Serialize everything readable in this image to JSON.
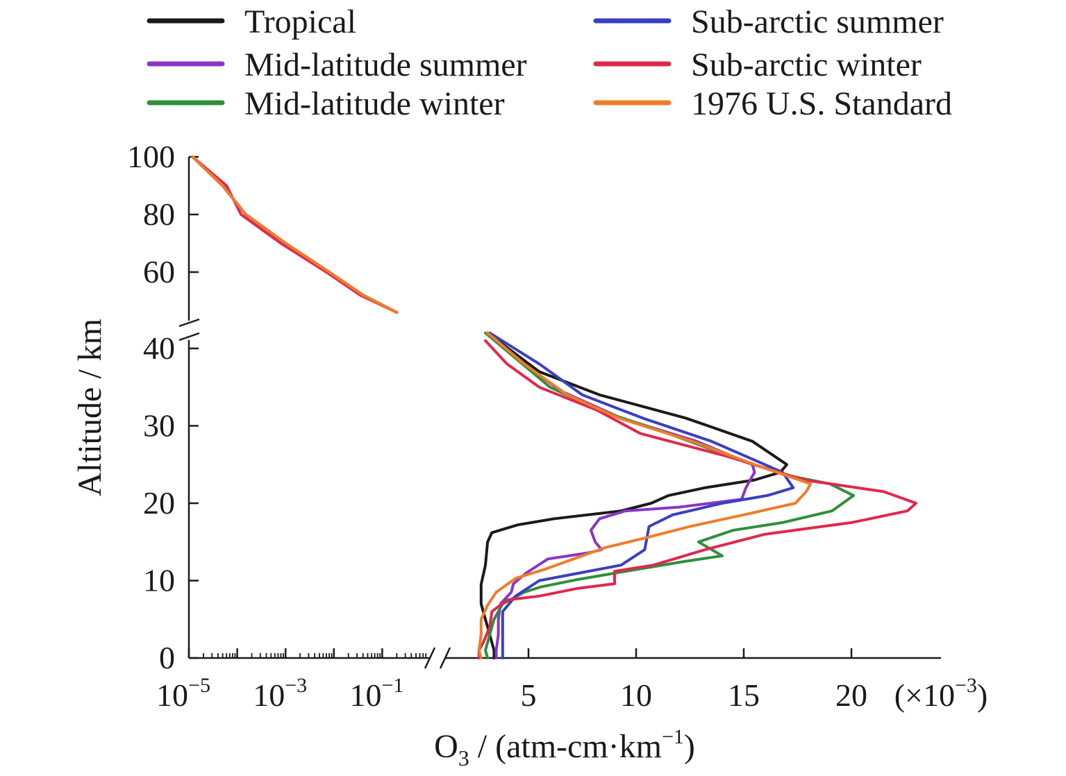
{
  "chart_data": {
    "type": "line",
    "xlabel_main": "O",
    "xlabel_sub": "3",
    "xlabel_rest": " / (atm-cm·km",
    "xlabel_sup": "−1",
    "xlabel_close": ")",
    "ylabel": "Altitude / km",
    "x_log_ticks": [
      {
        "base": "10",
        "exp": "−5"
      },
      {
        "base": "10",
        "exp": "−3"
      },
      {
        "base": "10",
        "exp": "−1"
      }
    ],
    "x_lin_ticks": [
      "5",
      "10",
      "15",
      "20"
    ],
    "x_multiplier_open": "(×10",
    "x_multiplier_exp": "−3",
    "x_multiplier_close": ")",
    "y_upper_ticks": [
      "100",
      "80",
      "60"
    ],
    "y_lower_ticks": [
      "40",
      "30",
      "20",
      "10",
      "0"
    ],
    "axis_segments": {
      "upper_y_range_km": [
        45,
        100
      ],
      "lower_y_range_km": [
        0,
        42
      ],
      "log_x_range": [
        1e-05,
        1
      ],
      "linear_x_range_1e-3": [
        0,
        25
      ]
    },
    "grid": false,
    "legend_placement": "top",
    "series": [
      {
        "name": "Tropical",
        "color": "#1a1a1a",
        "upper": [
          [
            1.2e-05,
            100
          ],
          [
            5e-05,
            90
          ],
          [
            0.00015,
            80
          ],
          [
            0.001,
            70
          ],
          [
            0.008,
            60
          ],
          [
            0.04,
            52
          ],
          [
            0.2,
            46
          ]
        ],
        "lower": [
          [
            3.1,
            42
          ],
          [
            5.5,
            37
          ],
          [
            8.3,
            34
          ],
          [
            12.3,
            31
          ],
          [
            15.4,
            28
          ],
          [
            17.0,
            25
          ],
          [
            16.7,
            24
          ],
          [
            15.5,
            23
          ],
          [
            13.2,
            22
          ],
          [
            11.5,
            21
          ],
          [
            10.7,
            20
          ],
          [
            9.3,
            19
          ],
          [
            6.2,
            18
          ],
          [
            4.5,
            17.2
          ],
          [
            3.3,
            16.2
          ],
          [
            3.1,
            15
          ],
          [
            3.0,
            12
          ],
          [
            2.8,
            9.5
          ],
          [
            2.8,
            7
          ],
          [
            3.0,
            5
          ],
          [
            3.2,
            3
          ],
          [
            3.4,
            1
          ],
          [
            3.4,
            0
          ]
        ]
      },
      {
        "name": "Mid-latitude summer",
        "color": "#8a35c4",
        "upper": [
          [
            1.2e-05,
            100
          ],
          [
            5e-05,
            90
          ],
          [
            0.00015,
            80
          ],
          [
            0.001,
            70
          ],
          [
            0.008,
            60
          ],
          [
            0.04,
            52
          ],
          [
            0.2,
            46
          ]
        ],
        "lower": [
          [
            3.1,
            42
          ],
          [
            4.8,
            38
          ],
          [
            6.5,
            34.5
          ],
          [
            9.3,
            31
          ],
          [
            12.8,
            28
          ],
          [
            15.4,
            25
          ],
          [
            15.5,
            24
          ],
          [
            15.1,
            22
          ],
          [
            14.9,
            20.5
          ],
          [
            12.0,
            19.5
          ],
          [
            9.5,
            19
          ],
          [
            8.3,
            18
          ],
          [
            7.9,
            16.5
          ],
          [
            8.1,
            15
          ],
          [
            8.4,
            14
          ],
          [
            7.8,
            13.6
          ],
          [
            5.9,
            12.8
          ],
          [
            4.9,
            11
          ],
          [
            4.3,
            9.6
          ],
          [
            4.2,
            8.5
          ],
          [
            3.7,
            7
          ],
          [
            3.6,
            5
          ],
          [
            3.6,
            3
          ],
          [
            3.5,
            1
          ],
          [
            3.5,
            0
          ]
        ]
      },
      {
        "name": "Mid-latitude winter",
        "color": "#2f8f3d",
        "upper": [
          [
            1.2e-05,
            100
          ],
          [
            5e-05,
            90
          ],
          [
            0.00015,
            80
          ],
          [
            0.001,
            70
          ],
          [
            0.008,
            60
          ],
          [
            0.04,
            52
          ],
          [
            0.2,
            46
          ]
        ],
        "lower": [
          [
            3.0,
            42
          ],
          [
            4.5,
            38.5
          ],
          [
            6.0,
            35
          ],
          [
            8.3,
            32
          ],
          [
            11.5,
            29
          ],
          [
            15.2,
            25.2
          ],
          [
            17.2,
            23.5
          ],
          [
            19.0,
            22.5
          ],
          [
            20.1,
            21
          ],
          [
            19.1,
            19
          ],
          [
            16.8,
            17.5
          ],
          [
            14.5,
            16.5
          ],
          [
            12.9,
            15
          ],
          [
            14.0,
            13.2
          ],
          [
            12.3,
            12.5
          ],
          [
            9.5,
            11.2
          ],
          [
            7.2,
            10.1
          ],
          [
            5.6,
            9.2
          ],
          [
            4.8,
            8.5
          ],
          [
            3.8,
            7
          ],
          [
            3.4,
            5
          ],
          [
            3.2,
            3
          ],
          [
            3.0,
            1
          ],
          [
            3.1,
            0
          ]
        ]
      },
      {
        "name": "Sub-arctic summer",
        "color": "#3b3fc0",
        "upper": [
          [
            1.2e-05,
            100
          ],
          [
            5e-05,
            90
          ],
          [
            0.00015,
            80
          ],
          [
            0.001,
            70
          ],
          [
            0.008,
            60
          ],
          [
            0.04,
            52
          ],
          [
            0.2,
            46
          ]
        ],
        "lower": [
          [
            3.2,
            42
          ],
          [
            5.5,
            38
          ],
          [
            7.5,
            34
          ],
          [
            10.3,
            31
          ],
          [
            13.5,
            28
          ],
          [
            16.8,
            24
          ],
          [
            17.3,
            22
          ],
          [
            16.1,
            21
          ],
          [
            14.0,
            20
          ],
          [
            11.7,
            18.5
          ],
          [
            10.6,
            17
          ],
          [
            10.4,
            14
          ],
          [
            9.3,
            12
          ],
          [
            7.4,
            11
          ],
          [
            5.5,
            10
          ],
          [
            4.4,
            8
          ],
          [
            3.8,
            6
          ],
          [
            3.8,
            3
          ],
          [
            3.8,
            1
          ],
          [
            3.8,
            0
          ]
        ]
      },
      {
        "name": "Sub-arctic winter",
        "color": "#e0284f",
        "upper": [
          [
            1.2e-05,
            100
          ],
          [
            6e-05,
            90
          ],
          [
            0.00012,
            80
          ],
          [
            0.0008,
            70
          ],
          [
            0.007,
            60
          ],
          [
            0.035,
            52
          ],
          [
            0.2,
            46
          ]
        ],
        "lower": [
          [
            3.0,
            41
          ],
          [
            4.0,
            38
          ],
          [
            5.5,
            35
          ],
          [
            8.2,
            32
          ],
          [
            10.2,
            29
          ],
          [
            14.3,
            26
          ],
          [
            17.8,
            23
          ],
          [
            21.5,
            21.5
          ],
          [
            23.0,
            20
          ],
          [
            22.6,
            19
          ],
          [
            20.0,
            17.5
          ],
          [
            16.0,
            16
          ],
          [
            13.2,
            14
          ],
          [
            10.8,
            12
          ],
          [
            9.0,
            11.2
          ],
          [
            9.0,
            9.6
          ],
          [
            7.3,
            9
          ],
          [
            5.5,
            8
          ],
          [
            4.0,
            7.5
          ],
          [
            3.3,
            6
          ],
          [
            3.2,
            4
          ],
          [
            2.9,
            2
          ],
          [
            2.7,
            1
          ],
          [
            2.7,
            0
          ]
        ]
      },
      {
        "name": "1976 U.S. Standard",
        "color": "#f07c2a",
        "upper": [
          [
            1.2e-05,
            100
          ],
          [
            5e-05,
            90
          ],
          [
            0.00015,
            80
          ],
          [
            0.001,
            70
          ],
          [
            0.008,
            60
          ],
          [
            0.04,
            52
          ],
          [
            0.2,
            46
          ]
        ],
        "lower": [
          [
            3.1,
            42
          ],
          [
            4.8,
            38
          ],
          [
            6.8,
            34
          ],
          [
            9.2,
            31
          ],
          [
            12.6,
            28
          ],
          [
            15.5,
            25
          ],
          [
            18.1,
            22.5
          ],
          [
            17.9,
            21.5
          ],
          [
            17.4,
            20
          ],
          [
            15.0,
            18.5
          ],
          [
            12.5,
            17
          ],
          [
            10.4,
            15.5
          ],
          [
            8.6,
            14.3
          ],
          [
            7.3,
            13
          ],
          [
            5.8,
            11.5
          ],
          [
            4.4,
            10.3
          ],
          [
            3.5,
            8.5
          ],
          [
            3.1,
            6.8
          ],
          [
            2.8,
            5
          ],
          [
            2.8,
            3
          ],
          [
            2.7,
            1
          ],
          [
            2.8,
            0
          ]
        ]
      }
    ]
  }
}
